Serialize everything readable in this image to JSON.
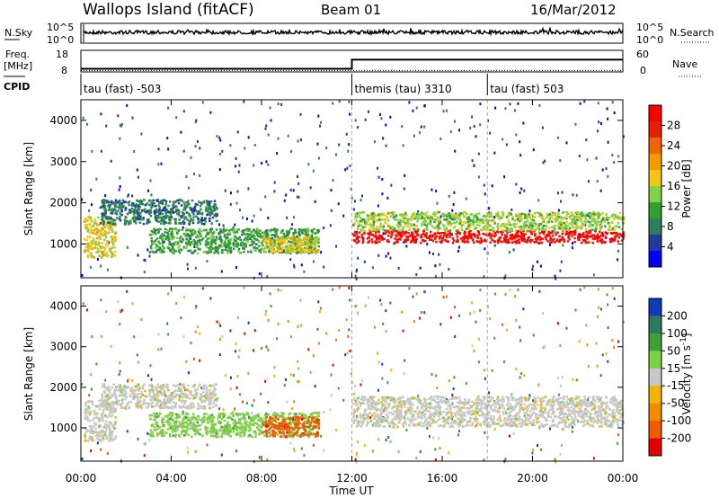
{
  "header": {
    "station": "Wallops Island (fitACF)",
    "beam": "Beam 01",
    "date": "16/Mar/2012"
  },
  "side_labels": {
    "nsky": "N.Sky",
    "freq_top": "Freq.",
    "freq_unit": "[MHz]",
    "cpid": "CPID",
    "nsearch": "N.Search",
    "nave": "Nave"
  },
  "noise_panel": {
    "left_ticks": [
      "10^5",
      "10^0"
    ],
    "right_ticks": [
      "10^5",
      "10^0"
    ]
  },
  "freq_panel": {
    "left_ticks": [
      "18",
      "8"
    ],
    "right_ticks": [
      "60",
      "0"
    ]
  },
  "cpid_segments": [
    {
      "label": "tau (fast) -503",
      "start_hour": 0
    },
    {
      "label": "themis (tau) 3310",
      "start_hour": 12
    },
    {
      "label": "tau (fast) 503",
      "start_hour": 18
    }
  ],
  "colors": {
    "power": [
      "#0000ff",
      "#1e3a9e",
      "#2e7d5b",
      "#33a02c",
      "#7fd24a",
      "#f5c518",
      "#f59b00",
      "#f06400",
      "#e81e00",
      "#ff0000"
    ],
    "velocity": [
      "#1538b8",
      "#2f7a5e",
      "#3da03a",
      "#7fcf47",
      "#c8c8c8",
      "#f2b400",
      "#f28a00",
      "#f05a00",
      "#e30000"
    ]
  },
  "chart_data": [
    {
      "type": "heatmap",
      "panel": "power",
      "ylabel": "Slant Range [km]",
      "xlabel": "Time UT",
      "xlim": [
        0,
        24
      ],
      "ylim": [
        180,
        4500
      ],
      "x_ticks": [
        "00:00",
        "04:00",
        "08:00",
        "12:00",
        "16:00",
        "20:00",
        "00:00"
      ],
      "y_ticks": [
        1000,
        2000,
        3000,
        4000
      ],
      "colorbar": {
        "label": "Power [dB]",
        "ticks": [
          4,
          8,
          12,
          16,
          20,
          24,
          28
        ]
      },
      "echo_bands": [
        {
          "t0": 0.1,
          "t1": 1.5,
          "r0": 700,
          "r1": 1700,
          "value": 18
        },
        {
          "t0": 0.8,
          "t1": 6.0,
          "r0": 1500,
          "r1": 2100,
          "value": 9
        },
        {
          "t0": 3.0,
          "t1": 10.5,
          "r0": 800,
          "r1": 1400,
          "value": 11
        },
        {
          "t0": 8.0,
          "t1": 10.5,
          "r0": 800,
          "r1": 1200,
          "value": 16
        },
        {
          "t0": 12.0,
          "t1": 24.0,
          "r0": 1050,
          "r1": 1350,
          "value": 28
        },
        {
          "t0": 12.0,
          "t1": 24.0,
          "r0": 1350,
          "r1": 1800,
          "value": 13
        }
      ]
    },
    {
      "type": "heatmap",
      "panel": "velocity",
      "ylabel": "Slant Range [km]",
      "xlabel": "Time UT",
      "xlim": [
        0,
        24
      ],
      "ylim": [
        180,
        4500
      ],
      "x_ticks": [
        "00:00",
        "04:00",
        "08:00",
        "12:00",
        "16:00",
        "20:00",
        "00:00"
      ],
      "y_ticks": [
        1000,
        2000,
        3000,
        4000
      ],
      "colorbar": {
        "label": "Velocity [m s^-1]",
        "ticks": [
          200,
          100,
          50,
          15,
          -15,
          -50,
          -100,
          -200
        ]
      },
      "echo_bands": [
        {
          "t0": 0.1,
          "t1": 1.5,
          "r0": 700,
          "r1": 1700,
          "value": 0
        },
        {
          "t0": 0.8,
          "t1": 6.0,
          "r0": 1500,
          "r1": 2100,
          "value": 0
        },
        {
          "t0": 3.0,
          "t1": 10.5,
          "r0": 800,
          "r1": 1400,
          "value": 40
        },
        {
          "t0": 8.0,
          "t1": 10.5,
          "r0": 800,
          "r1": 1300,
          "value": -60
        },
        {
          "t0": 12.0,
          "t1": 24.0,
          "r0": 1050,
          "r1": 1800,
          "value": 0
        }
      ]
    }
  ],
  "time_axis_label": "Time UT",
  "freq_series": {
    "hours": [
      0,
      12,
      12,
      24
    ],
    "mhz": [
      10.3,
      10.3,
      14.5,
      14.5
    ]
  },
  "nave_series": {
    "hours": [
      0,
      24
    ],
    "value": [
      4,
      4
    ]
  }
}
